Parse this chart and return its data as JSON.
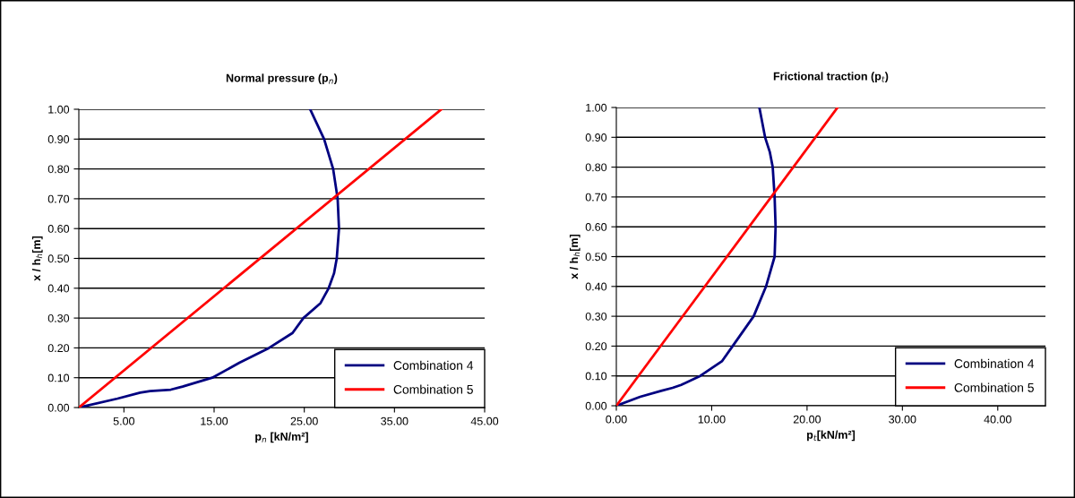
{
  "chart_data": [
    {
      "type": "line",
      "title": "Normal pressure (p$_{n}$)",
      "xlabel": "p$_{n}$ [kN/m²]",
      "ylabel": "x / h$_{h}$[m]",
      "xlim": [
        0,
        45
      ],
      "xticks": [
        {
          "value": 5,
          "label": "5.00"
        },
        {
          "value": 15,
          "label": "15.00"
        },
        {
          "value": 25,
          "label": "25.00"
        },
        {
          "value": 35,
          "label": "35.00"
        },
        {
          "value": 45,
          "label": "45.00"
        }
      ],
      "ylim": [
        0,
        1
      ],
      "yticks": [
        {
          "value": 0,
          "label": "0.00"
        },
        {
          "value": 0.1,
          "label": "0.10"
        },
        {
          "value": 0.2,
          "label": "0.20"
        },
        {
          "value": 0.3,
          "label": "0.30"
        },
        {
          "value": 0.4,
          "label": "0.40"
        },
        {
          "value": 0.5,
          "label": "0.50"
        },
        {
          "value": 0.6,
          "label": "0.60"
        },
        {
          "value": 0.7,
          "label": "0.70"
        },
        {
          "value": 0.8,
          "label": "0.80"
        },
        {
          "value": 0.9,
          "label": "0.90"
        },
        {
          "value": 1,
          "label": "1.00"
        }
      ],
      "grid": "y",
      "legend": "bottom right",
      "marker": "none",
      "line_style": "solid",
      "series": [
        {
          "name": "Combination 4",
          "color": "#000080",
          "x": [
            0,
            4.3,
            6.8,
            7.9,
            10.2,
            11.5,
            14.8,
            17.8,
            21.1,
            23.7,
            24.9,
            26.8,
            27.7,
            28.3,
            28.6,
            28.85,
            28.7,
            28.2,
            27.2,
            25.65
          ],
          "values": [
            0,
            0.03,
            0.05,
            0.055,
            0.06,
            0.07,
            0.1,
            0.15,
            0.2,
            0.25,
            0.3,
            0.35,
            0.4,
            0.45,
            0.5,
            0.6,
            0.7,
            0.8,
            0.9,
            1.0
          ]
        },
        {
          "name": "Combination 5",
          "color": "#ff0000",
          "x": [
            0,
            40.2
          ],
          "values": [
            0,
            1.0
          ]
        }
      ]
    },
    {
      "type": "line",
      "title": "Frictional traction (p$_{t}$)",
      "xlabel": "p$_{t}$[kN/m²]",
      "ylabel": "x / h$_{h}$[m]",
      "xlim": [
        0,
        45
      ],
      "xticks": [
        {
          "value": 0,
          "label": "0.00"
        },
        {
          "value": 10,
          "label": "10.00"
        },
        {
          "value": 20,
          "label": "20.00"
        },
        {
          "value": 30,
          "label": "30.00"
        },
        {
          "value": 40,
          "label": "40.00"
        }
      ],
      "ylim": [
        0,
        1
      ],
      "yticks": [
        {
          "value": 0,
          "label": "0.00"
        },
        {
          "value": 0.1,
          "label": "0.10"
        },
        {
          "value": 0.2,
          "label": "0.20"
        },
        {
          "value": 0.3,
          "label": "0.30"
        },
        {
          "value": 0.4,
          "label": "0.40"
        },
        {
          "value": 0.5,
          "label": "0.50"
        },
        {
          "value": 0.6,
          "label": "0.60"
        },
        {
          "value": 0.7,
          "label": "0.70"
        },
        {
          "value": 0.8,
          "label": "0.80"
        },
        {
          "value": 0.9,
          "label": "0.90"
        },
        {
          "value": 1,
          "label": "1.00"
        }
      ],
      "grid": "y",
      "legend": "bottom right",
      "marker": "none",
      "line_style": "solid",
      "series": [
        {
          "name": "Combination 4",
          "color": "#000080",
          "x": [
            0,
            2.5,
            4.7,
            5.9,
            6.8,
            8.8,
            11.1,
            12.2,
            14.4,
            15.7,
            16.6,
            16.7,
            16.6,
            16.4,
            16.1,
            15.6,
            15.0
          ],
          "values": [
            0,
            0.03,
            0.05,
            0.06,
            0.07,
            0.1,
            0.15,
            0.2,
            0.3,
            0.4,
            0.5,
            0.6,
            0.7,
            0.8,
            0.85,
            0.9,
            1.0
          ]
        },
        {
          "name": "Combination 5",
          "color": "#ff0000",
          "x": [
            0,
            23.2
          ],
          "values": [
            0,
            1.0
          ]
        }
      ]
    }
  ]
}
